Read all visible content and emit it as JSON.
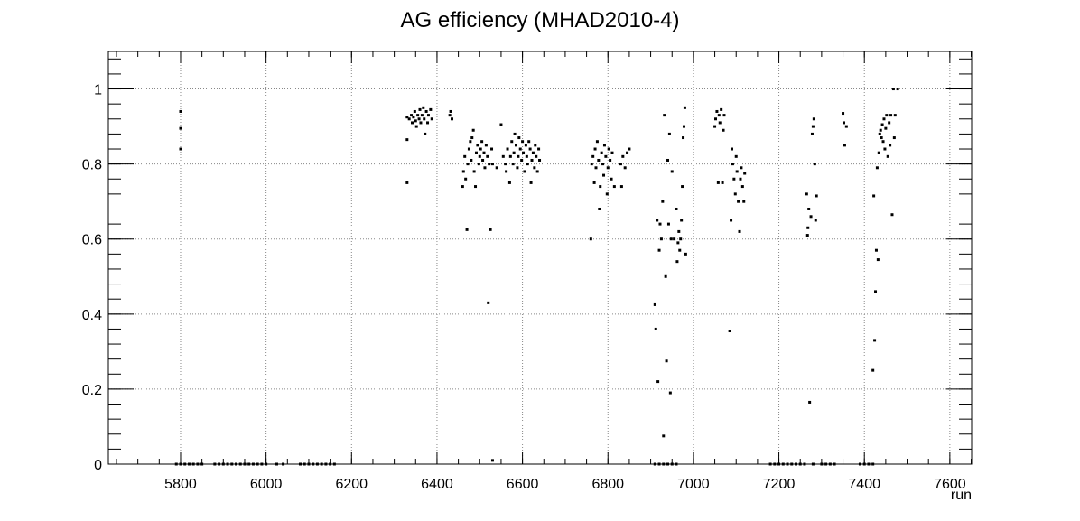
{
  "chart_data": {
    "type": "scatter",
    "title": "AG efficiency (MHAD2010-4)",
    "xlabel": "run",
    "xlim": [
      5631,
      7651
    ],
    "ylim": [
      0,
      1.1
    ],
    "xticks": [
      5800,
      6000,
      6200,
      6400,
      6600,
      6800,
      7000,
      7200,
      7400,
      7600
    ],
    "yticks": [
      0,
      0.2,
      0.4,
      0.6,
      0.8,
      1
    ],
    "grid": true,
    "color": "#000000",
    "x": [
      5800,
      5800,
      5800,
      5790,
      5800,
      5810,
      5820,
      5830,
      5840,
      5850,
      5880,
      5890,
      5900,
      5910,
      5920,
      5930,
      5940,
      5950,
      5960,
      5970,
      5980,
      5990,
      6000,
      6025,
      6040,
      6080,
      6090,
      6100,
      6110,
      6120,
      6130,
      6140,
      6150,
      6160,
      6330,
      6330,
      6330,
      6335,
      6340,
      6342,
      6345,
      6348,
      6350,
      6352,
      6355,
      6358,
      6360,
      6362,
      6365,
      6368,
      6370,
      6372,
      6375,
      6378,
      6380,
      6385,
      6388,
      6430,
      6432,
      6435,
      6460,
      6462,
      6465,
      6467,
      6470,
      6472,
      6475,
      6478,
      6480,
      6482,
      6485,
      6487,
      6490,
      6492,
      6495,
      6498,
      6500,
      6502,
      6505,
      6507,
      6510,
      6512,
      6515,
      6518,
      6520,
      6522,
      6525,
      6528,
      6530,
      6540,
      6530,
      6550,
      6555,
      6560,
      6562,
      6565,
      6570,
      6572,
      6575,
      6578,
      6580,
      6582,
      6585,
      6588,
      6590,
      6592,
      6595,
      6598,
      6600,
      6602,
      6605,
      6608,
      6610,
      6612,
      6615,
      6618,
      6620,
      6622,
      6625,
      6628,
      6630,
      6632,
      6635,
      6638,
      6640,
      6760,
      6762,
      6765,
      6768,
      6770,
      6772,
      6775,
      6778,
      6780,
      6782,
      6785,
      6788,
      6790,
      6792,
      6795,
      6798,
      6800,
      6802,
      6805,
      6808,
      6810,
      6815,
      6830,
      6832,
      6835,
      6840,
      6845,
      6850,
      6910,
      6912,
      6915,
      6917,
      6920,
      6922,
      6925,
      6928,
      6930,
      6932,
      6935,
      6937,
      6940,
      6942,
      6944,
      6946,
      6948,
      6950,
      6955,
      6960,
      6962,
      6964,
      6966,
      6968,
      6970,
      6972,
      6974,
      6976,
      6978,
      6980,
      6982,
      6910,
      6920,
      6930,
      6940,
      6950,
      6960,
      7050,
      7052,
      7055,
      7058,
      7060,
      7062,
      7065,
      7068,
      7070,
      7072,
      7085,
      7088,
      7090,
      7092,
      7095,
      7098,
      7100,
      7102,
      7105,
      7108,
      7110,
      7112,
      7115,
      7118,
      7120,
      7180,
      7190,
      7200,
      7210,
      7220,
      7230,
      7240,
      7250,
      7260,
      7280,
      7300,
      7310,
      7320,
      7330,
      7390,
      7400,
      7410,
      7420,
      7265,
      7267,
      7268,
      7270,
      7272,
      7275,
      7278,
      7280,
      7282,
      7284,
      7286,
      7288,
      7350,
      7352,
      7354,
      7358,
      7420,
      7422,
      7424,
      7426,
      7428,
      7430,
      7432,
      7434,
      7436,
      7438,
      7440,
      7442,
      7444,
      7446,
      7448,
      7450,
      7452,
      7455,
      7458,
      7460,
      7462,
      7465,
      7468,
      7470,
      7472,
      7478
    ],
    "values": [
      0.94,
      0.895,
      0.84,
      0,
      0,
      0,
      0,
      0,
      0,
      0,
      0,
      0,
      0,
      0,
      0,
      0,
      0,
      0,
      0,
      0,
      0,
      0,
      0,
      0,
      0,
      0,
      0,
      0,
      0,
      0,
      0,
      0,
      0,
      0,
      0.75,
      0.865,
      0.925,
      0.92,
      0.93,
      0.91,
      0.925,
      0.94,
      0.915,
      0.9,
      0.93,
      0.92,
      0.945,
      0.91,
      0.93,
      0.95,
      0.92,
      0.88,
      0.94,
      0.91,
      0.93,
      0.945,
      0.92,
      0.93,
      0.94,
      0.92,
      0.74,
      0.78,
      0.82,
      0.76,
      0.625,
      0.8,
      0.84,
      0.86,
      0.81,
      0.87,
      0.89,
      0.78,
      0.74,
      0.83,
      0.85,
      0.8,
      0.82,
      0.84,
      0.86,
      0.81,
      0.83,
      0.79,
      0.85,
      0.82,
      0.43,
      0.8,
      0.625,
      0.84,
      0.8,
      0.79,
      0.01,
      0.905,
      0.82,
      0.8,
      0.78,
      0.84,
      0.75,
      0.82,
      0.86,
      0.8,
      0.83,
      0.88,
      0.85,
      0.79,
      0.82,
      0.87,
      0.84,
      0.81,
      0.86,
      0.83,
      0.78,
      0.85,
      0.82,
      0.8,
      0.86,
      0.84,
      0.75,
      0.81,
      0.83,
      0.79,
      0.85,
      0.82,
      0.78,
      0.84,
      0.81,
      0.6,
      0.8,
      0.82,
      0.75,
      0.84,
      0.79,
      0.86,
      0.81,
      0.68,
      0.74,
      0.83,
      0.8,
      0.77,
      0.85,
      0.82,
      0.72,
      0.79,
      0.84,
      0.81,
      0.76,
      0.83,
      0.74,
      0.8,
      0.74,
      0.82,
      0.79,
      0.83,
      0.84,
      0.425,
      0.36,
      0.65,
      0.22,
      0.57,
      0.64,
      0.6,
      0.7,
      0.075,
      0.93,
      0.5,
      0.275,
      0.81,
      0.64,
      0.88,
      0.19,
      0.6,
      0.78,
      0.6,
      0.68,
      0.54,
      0.59,
      0.62,
      0.57,
      0.6,
      0.65,
      0.74,
      0.87,
      0.9,
      0.95,
      0.56,
      0,
      0,
      0,
      0,
      0,
      0,
      0.9,
      0.92,
      0.94,
      0.75,
      0.93,
      0.91,
      0.945,
      0.75,
      0.89,
      0.93,
      0.355,
      0.65,
      0.84,
      0.8,
      0.76,
      0.72,
      0.82,
      0.78,
      0.7,
      0.62,
      0.76,
      0.79,
      0.74,
      0.7,
      0.775,
      0,
      0,
      0,
      0,
      0,
      0,
      0,
      0,
      0,
      0,
      0,
      0,
      0,
      0,
      0,
      0,
      0,
      0,
      0.72,
      0.61,
      0.63,
      0.68,
      0.165,
      0.66,
      0.88,
      0.9,
      0.92,
      0.8,
      0.65,
      0.715,
      0.935,
      0.91,
      0.85,
      0.9,
      0.25,
      0.715,
      0.33,
      0.46,
      0.57,
      0.79,
      0.545,
      0.83,
      0.88,
      0.89,
      0.87,
      0.905,
      0.86,
      0.92,
      0.84,
      0.895,
      0.93,
      0.82,
      0.91,
      0.85,
      0.93,
      0.665,
      1.0,
      0.87,
      0.93,
      1.0
    ]
  }
}
